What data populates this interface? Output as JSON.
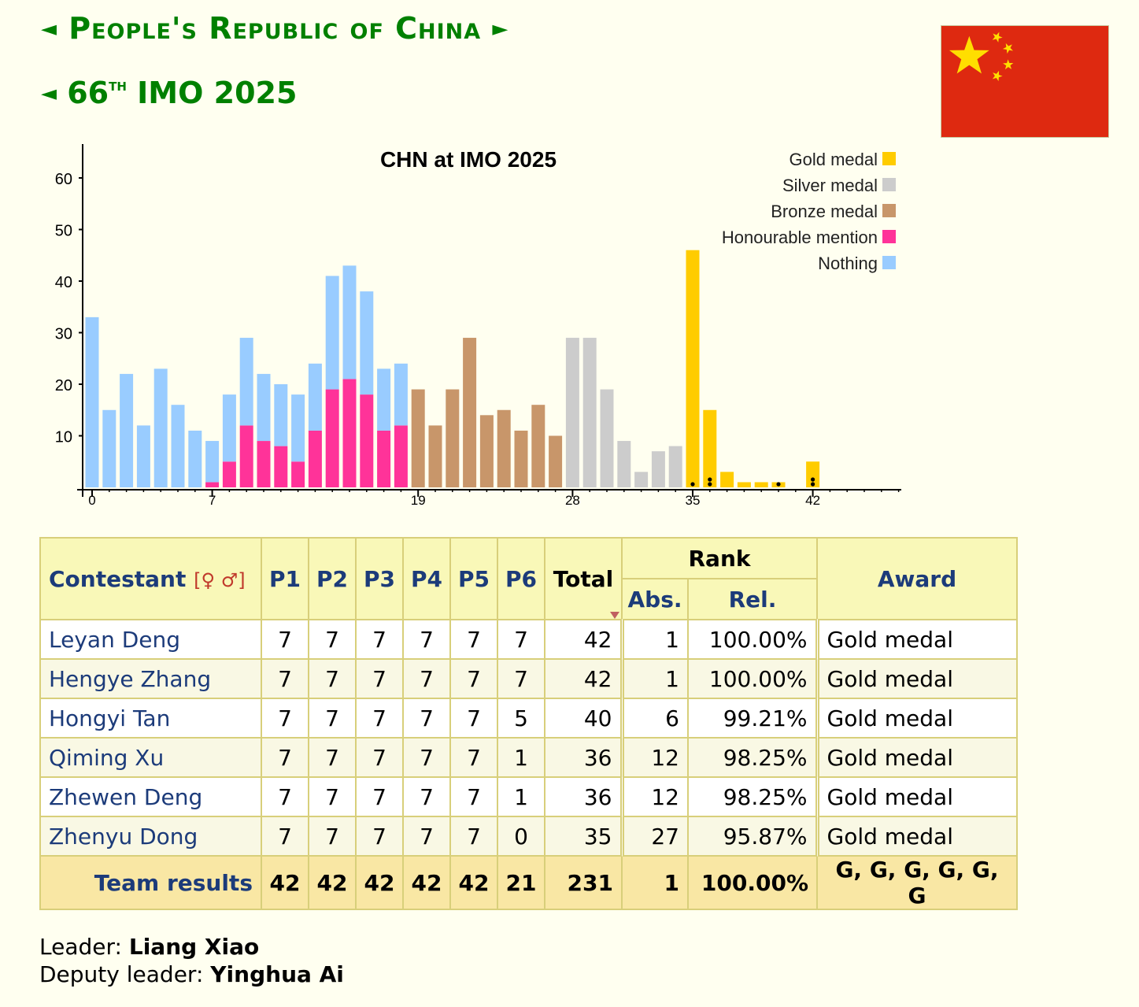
{
  "header": {
    "country_title": "People's Republic of China",
    "arrow_left": "◄",
    "arrow_right": "►",
    "imo_num": "66",
    "imo_sup": "th",
    "imo_rest": "IMO 2025"
  },
  "chart_data": {
    "type": "bar",
    "title": "CHN at IMO 2025",
    "xlabel": "",
    "ylabel": "",
    "ylim": [
      0,
      65
    ],
    "yticks": [
      10,
      20,
      30,
      40,
      50,
      60
    ],
    "xticks": [
      0,
      7,
      19,
      28,
      35,
      42
    ],
    "legend_position": "top-right",
    "legend": [
      {
        "name": "Gold medal",
        "color": "#ffcc00"
      },
      {
        "name": "Silver medal",
        "color": "#cccccc"
      },
      {
        "name": "Bronze medal",
        "color": "#c8966a"
      },
      {
        "name": "Honourable mention",
        "color": "#ff3399"
      },
      {
        "name": "Nothing",
        "color": "#99ccff"
      }
    ],
    "x": [
      0,
      1,
      2,
      3,
      4,
      5,
      6,
      7,
      8,
      9,
      10,
      11,
      12,
      13,
      14,
      15,
      16,
      17,
      18,
      19,
      20,
      21,
      22,
      23,
      24,
      25,
      26,
      27,
      28,
      29,
      30,
      31,
      32,
      33,
      34,
      35,
      36,
      37,
      38,
      39,
      40,
      41,
      42
    ],
    "series": [
      {
        "name": "Nothing",
        "values": [
          33,
          15,
          22,
          12,
          23,
          16,
          11,
          8,
          13,
          17,
          13,
          12,
          13,
          13,
          22,
          22,
          20,
          12,
          12,
          0,
          0,
          0,
          0,
          0,
          0,
          0,
          0,
          0,
          0,
          0,
          0,
          0,
          0,
          0,
          0,
          0,
          0,
          0,
          0,
          0,
          0,
          0,
          0
        ]
      },
      {
        "name": "Honourable mention",
        "values": [
          0,
          0,
          0,
          0,
          0,
          0,
          0,
          1,
          5,
          12,
          9,
          8,
          5,
          11,
          19,
          21,
          18,
          11,
          12,
          0,
          0,
          0,
          0,
          0,
          0,
          0,
          0,
          0,
          0,
          0,
          0,
          0,
          0,
          0,
          0,
          0,
          0,
          0,
          0,
          0,
          0,
          0,
          0
        ]
      },
      {
        "name": "Bronze medal",
        "values": [
          0,
          0,
          0,
          0,
          0,
          0,
          0,
          0,
          0,
          0,
          0,
          0,
          0,
          0,
          0,
          0,
          0,
          0,
          0,
          19,
          12,
          19,
          29,
          14,
          15,
          11,
          16,
          10,
          0,
          0,
          0,
          0,
          0,
          0,
          0,
          0,
          0,
          0,
          0,
          0,
          0,
          0,
          0
        ]
      },
      {
        "name": "Silver medal",
        "values": [
          0,
          0,
          0,
          0,
          0,
          0,
          0,
          0,
          0,
          0,
          0,
          0,
          0,
          0,
          0,
          0,
          0,
          0,
          0,
          0,
          0,
          0,
          0,
          0,
          0,
          0,
          0,
          0,
          29,
          29,
          19,
          9,
          3,
          7,
          8,
          0,
          0,
          0,
          0,
          0,
          0,
          0,
          0
        ]
      },
      {
        "name": "Gold medal",
        "values": [
          0,
          0,
          0,
          0,
          0,
          0,
          0,
          0,
          0,
          0,
          0,
          0,
          0,
          0,
          0,
          0,
          0,
          0,
          0,
          0,
          0,
          0,
          0,
          0,
          0,
          0,
          0,
          0,
          0,
          0,
          0,
          0,
          0,
          0,
          0,
          46,
          15,
          3,
          1,
          1,
          1,
          0,
          5
        ]
      }
    ],
    "team_markers": [
      {
        "x": 35,
        "count": 1
      },
      {
        "x": 36,
        "count": 2
      },
      {
        "x": 40,
        "count": 1
      },
      {
        "x": 42,
        "count": 2
      }
    ]
  },
  "table": {
    "headers": {
      "contestant": "Contestant",
      "gender_symbols": "♀ ♂",
      "p1": "P1",
      "p2": "P2",
      "p3": "P3",
      "p4": "P4",
      "p5": "P5",
      "p6": "P6",
      "total": "Total",
      "rank": "Rank",
      "abs": "Abs.",
      "rel": "Rel.",
      "award": "Award"
    },
    "rows": [
      {
        "name": "Leyan Deng",
        "scores": [
          "7",
          "7",
          "7",
          "7",
          "7",
          "7"
        ],
        "total": "42",
        "abs": "1",
        "rel": "100.00%",
        "award": "Gold medal"
      },
      {
        "name": "Hengye Zhang",
        "scores": [
          "7",
          "7",
          "7",
          "7",
          "7",
          "7"
        ],
        "total": "42",
        "abs": "1",
        "rel": "100.00%",
        "award": "Gold medal"
      },
      {
        "name": "Hongyi Tan",
        "scores": [
          "7",
          "7",
          "7",
          "7",
          "7",
          "5"
        ],
        "total": "40",
        "abs": "6",
        "rel": "99.21%",
        "award": "Gold medal"
      },
      {
        "name": "Qiming Xu",
        "scores": [
          "7",
          "7",
          "7",
          "7",
          "7",
          "1"
        ],
        "total": "36",
        "abs": "12",
        "rel": "98.25%",
        "award": "Gold medal"
      },
      {
        "name": "Zhewen Deng",
        "scores": [
          "7",
          "7",
          "7",
          "7",
          "7",
          "1"
        ],
        "total": "36",
        "abs": "12",
        "rel": "98.25%",
        "award": "Gold medal"
      },
      {
        "name": "Zhenyu Dong",
        "scores": [
          "7",
          "7",
          "7",
          "7",
          "7",
          "0"
        ],
        "total": "35",
        "abs": "27",
        "rel": "95.87%",
        "award": "Gold medal"
      }
    ],
    "team": {
      "label": "Team results",
      "scores": [
        "42",
        "42",
        "42",
        "42",
        "42",
        "21"
      ],
      "total": "231",
      "abs": "1",
      "rel": "100.00%",
      "award": "G, G, G, G, G, G"
    }
  },
  "leaders": {
    "leader_label": "Leader:",
    "leader_name": "Liang Xiao",
    "deputy_label": "Deputy leader:",
    "deputy_name": "Yinghua Ai"
  },
  "flag": {
    "red": "#de2910",
    "star": "#ffde00"
  }
}
